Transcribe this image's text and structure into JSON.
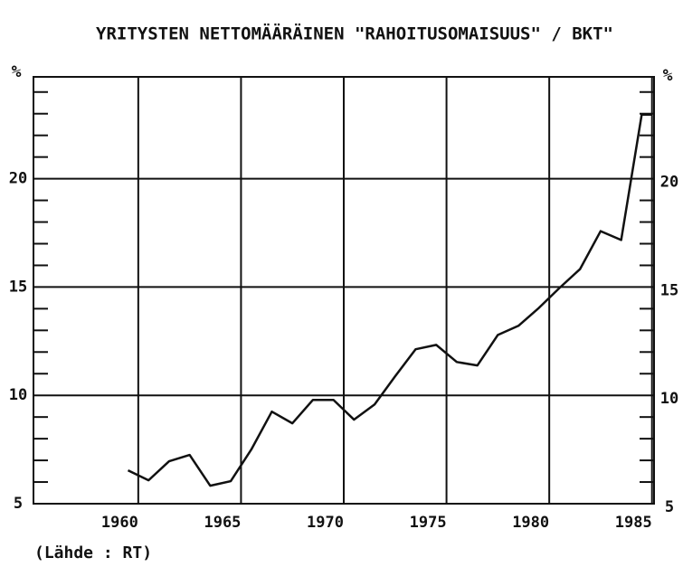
{
  "chart_data": {
    "type": "line",
    "title": "YRITYSTEN NETTOMÄÄRÄINEN \"RAHOITUSOMAISUUS\" / BKT\"",
    "y_unit": "%",
    "source": "(Lähde : RT)",
    "x": [
      1959.5,
      1960.5,
      1961.5,
      1962.5,
      1963.5,
      1964.5,
      1965.5,
      1966.5,
      1967.5,
      1968.5,
      1969.5,
      1970.5,
      1971.5,
      1972.5,
      1973.5,
      1974.5,
      1975.5,
      1976.5,
      1977.5,
      1978.5,
      1979.5,
      1980.5,
      1981.5,
      1982.5,
      1983.5,
      1984.5,
      1985
    ],
    "series": [
      {
        "color": "#111111",
        "values": [
          6.54,
          6.08,
          6.96,
          7.25,
          5.83,
          6.04,
          7.5,
          9.25,
          8.71,
          9.79,
          9.79,
          8.88,
          9.58,
          10.88,
          12.13,
          12.33,
          11.54,
          11.38,
          12.79,
          13.21,
          14.04,
          14.96,
          15.83,
          17.58,
          17.17,
          22.96,
          22.96
        ]
      }
    ],
    "xlim": [
      1954.9,
      1985.1
    ],
    "xticks": [
      1960,
      1965,
      1970,
      1975,
      1980,
      1985
    ],
    "ylim": [
      5,
      24.7
    ],
    "yticks": [
      5,
      10,
      15,
      20
    ],
    "yminor_ticks": [
      6,
      7,
      8,
      9,
      11,
      12,
      13,
      14,
      16,
      17,
      18,
      19,
      21,
      22,
      23,
      24
    ],
    "grid": true
  }
}
